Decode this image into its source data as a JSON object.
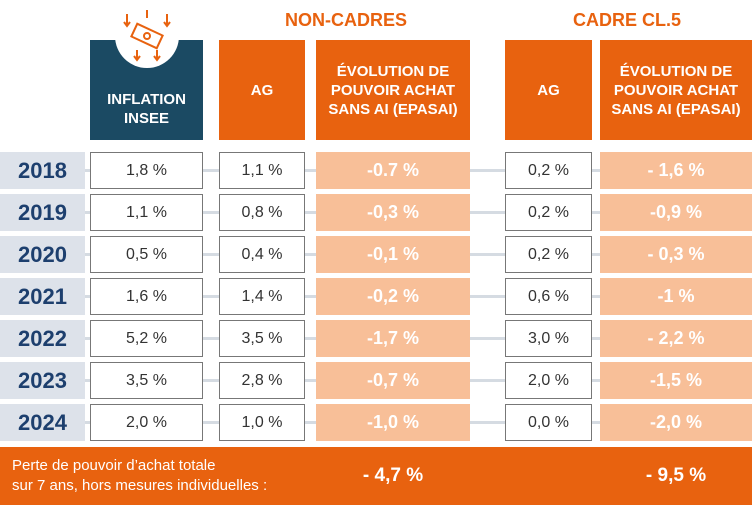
{
  "header": {
    "inflation": [
      "INFLATION",
      "INSEE"
    ],
    "groups": [
      {
        "title": "NON-CADRES",
        "columns": [
          [
            "AG"
          ],
          [
            "ÉVOLUTION DE",
            "POUVOIR ACHAT",
            "SANS AI (EPASAI)"
          ]
        ]
      },
      {
        "title": "CADRE CL.5",
        "columns": [
          [
            "AG"
          ],
          [
            "ÉVOLUTION DE",
            "POUVOIR ACHAT",
            "SANS AI (EPASAI)"
          ]
        ]
      }
    ]
  },
  "table": {
    "rows": [
      [
        "2018",
        "1,8 %",
        "1,1 %",
        "-0.7 %",
        "0,2 %",
        "- 1,6 %"
      ],
      [
        "2019",
        "1,1 %",
        "0,8 %",
        "-0,3 %",
        "0,2 %",
        "-0,9 %"
      ],
      [
        "2020",
        "0,5 %",
        "0,4 %",
        "-0,1 %",
        "0,2 %",
        "- 0,3 %"
      ],
      [
        "2021",
        "1,6 %",
        "1,4 %",
        "-0,2 %",
        "0,6 %",
        "-1 %"
      ],
      [
        "2022",
        "5,2 %",
        "3,5 %",
        "-1,7 %",
        "3,0 %",
        "- 2,2 %"
      ],
      [
        "2023",
        "3,5 %",
        "2,8 %",
        "-0,7 %",
        "2,0 %",
        "-1,5 %"
      ],
      [
        "2024",
        "2,0 %",
        "1,0 %",
        "-1,0 %",
        "0,0 %",
        "-2,0 %"
      ]
    ]
  },
  "footer": {
    "label": [
      "Perte de pouvoir d’achat totale",
      "sur 7 ans, hors mesures individuelles :"
    ],
    "non_cadres": "- 4,7 %",
    "cadre": "- 9,5 %"
  }
}
